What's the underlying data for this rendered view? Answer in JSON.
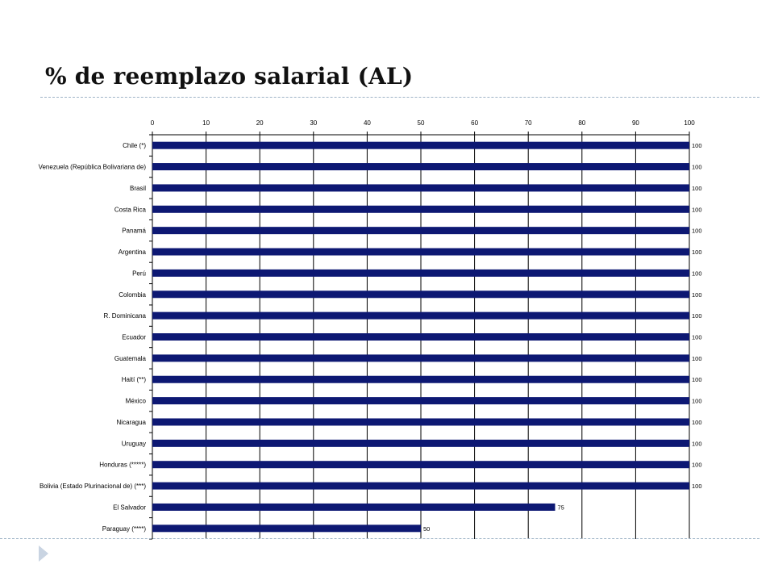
{
  "slide": {
    "title": "% de reemplazo salarial (AL)"
  },
  "colors": {
    "bar": "#0d1873",
    "grid": "#000000",
    "divider": "#9fb4c7",
    "bullet": "#c9d4e2"
  },
  "icons": {
    "bullet": "triangle-bullet-icon"
  },
  "chart_data": {
    "type": "bar",
    "orientation": "horizontal",
    "title": "",
    "xlabel": "",
    "ylabel": "",
    "xlim": [
      0,
      100
    ],
    "ticks": [
      0,
      10,
      20,
      30,
      40,
      50,
      60,
      70,
      80,
      90,
      100
    ],
    "x_axis_position": "top",
    "grid": true,
    "legend": "none",
    "categories": [
      "Chile (*)",
      "Venezuela (República Bolivariana de)",
      "Brasil",
      "Costa Rica",
      "Panamá",
      "Argentina",
      "Perú",
      "Colombia",
      "R. Dominicana",
      "Ecuador",
      "Guatemala",
      "Haití (**)",
      "México",
      "Nicaragua",
      "Uruguay",
      "Honduras (*****)",
      "Bolivia (Estado Plurinacional de) (***)",
      "El Salvador",
      "Paraguay (****)"
    ],
    "values": [
      100,
      100,
      100,
      100,
      100,
      100,
      100,
      100,
      100,
      100,
      100,
      100,
      100,
      100,
      100,
      100,
      100,
      75,
      50
    ]
  }
}
